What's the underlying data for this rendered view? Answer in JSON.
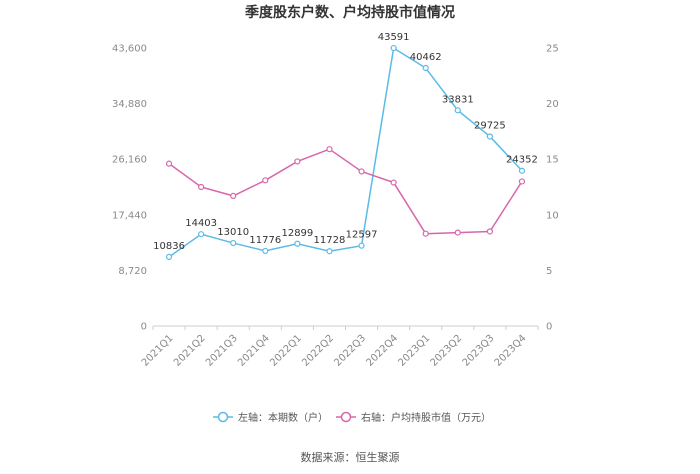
{
  "chart_data": {
    "type": "line",
    "title": "季度股东户数、户均持股市值情况",
    "categories": [
      "2021Q1",
      "2021Q2",
      "2021Q3",
      "2021Q4",
      "2022Q1",
      "2022Q2",
      "2022Q3",
      "2022Q4",
      "2023Q1",
      "2023Q2",
      "2023Q3",
      "2023Q4"
    ],
    "left_axis": {
      "ticks": [
        "0",
        "8,720",
        "17,440",
        "26,160",
        "34,880",
        "43,600"
      ],
      "ylim": [
        0,
        43600
      ]
    },
    "right_axis": {
      "ticks": [
        "0",
        "5",
        "10",
        "15",
        "20",
        "25"
      ],
      "ylim": [
        0,
        25
      ]
    },
    "series": [
      {
        "name": "左轴：本期数（户）",
        "axis": "left",
        "color": "#5bbbe6",
        "values": [
          10836,
          14403,
          13010,
          11776,
          12899,
          11728,
          12597,
          43591,
          40462,
          33831,
          29725,
          24352
        ],
        "labels": [
          "10836",
          "14403",
          "13010",
          "11776",
          "12899",
          "11728",
          "12597",
          "43591",
          "40462",
          "33831",
          "29725",
          "24352"
        ]
      },
      {
        "name": "右轴：户均持股市值（万元）",
        "axis": "right",
        "color": "#d966ad",
        "values": [
          14.6,
          12.5,
          11.7,
          13.1,
          14.8,
          15.9,
          13.9,
          12.9,
          8.3,
          8.4,
          8.5,
          13.0
        ]
      }
    ],
    "grid": false,
    "legend_position": "bottom"
  },
  "source_text": "数据来源：恒生聚源"
}
